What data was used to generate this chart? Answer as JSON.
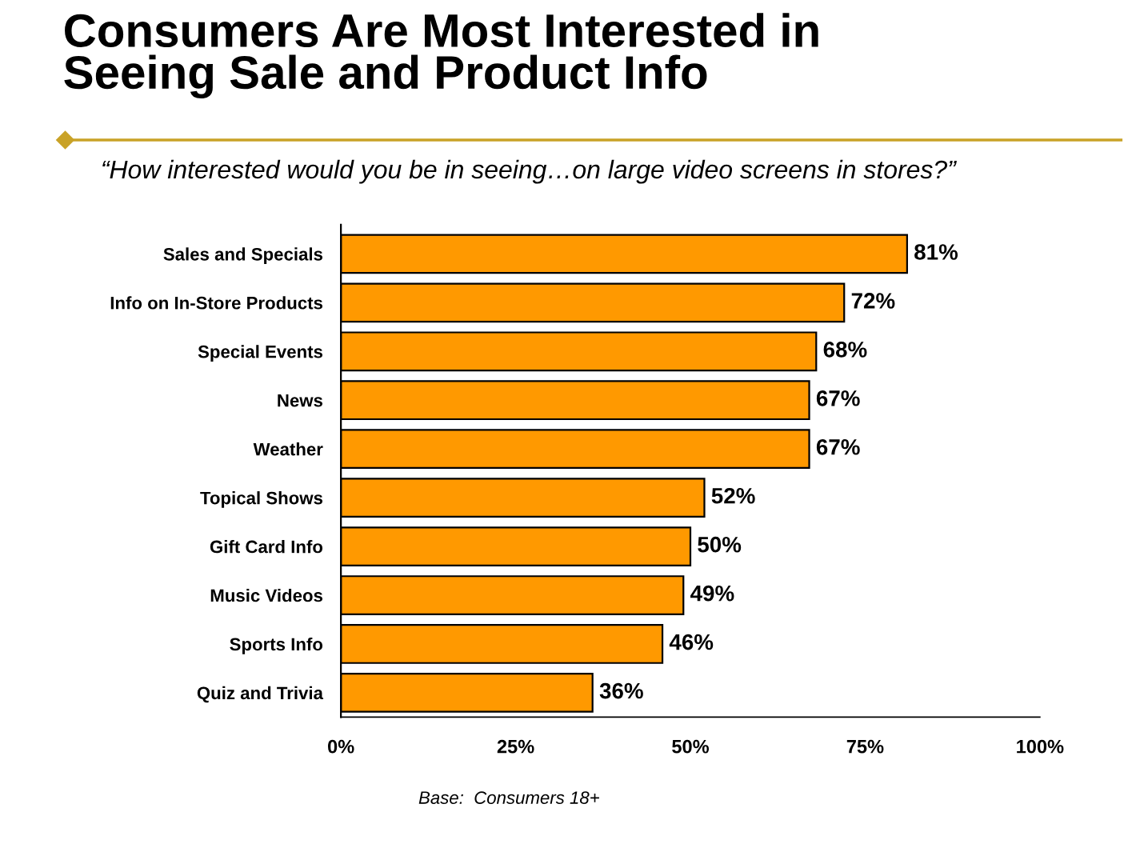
{
  "chart_data": {
    "type": "bar",
    "orientation": "horizontal",
    "title": "Consumers Are Most Interested in\nSeeing Sale and Product Info",
    "subtitle": "“How interested would you be in seeing…on large video screens in stores?”",
    "categories": [
      "Sales and Specials",
      "Info on In-Store Products",
      "Special Events",
      "News",
      "Weather",
      "Topical Shows",
      "Gift Card Info",
      "Music Videos",
      "Sports Info",
      "Quiz and Trivia"
    ],
    "values": [
      81,
      72,
      68,
      67,
      67,
      52,
      50,
      49,
      46,
      36
    ],
    "value_labels": [
      "81%",
      "72%",
      "68%",
      "67%",
      "67%",
      "52%",
      "50%",
      "49%",
      "46%",
      "36%"
    ],
    "color": "#ff9900",
    "xlim": [
      0,
      100
    ],
    "xticks": [
      {
        "value": 0,
        "label": "0%"
      },
      {
        "value": 25,
        "label": "25%"
      },
      {
        "value": 50,
        "label": "50%"
      },
      {
        "value": 75,
        "label": "75%"
      },
      {
        "value": 100,
        "label": "100%"
      }
    ],
    "grid": false,
    "annotations": [
      "Base:  Consumers 18+"
    ]
  }
}
